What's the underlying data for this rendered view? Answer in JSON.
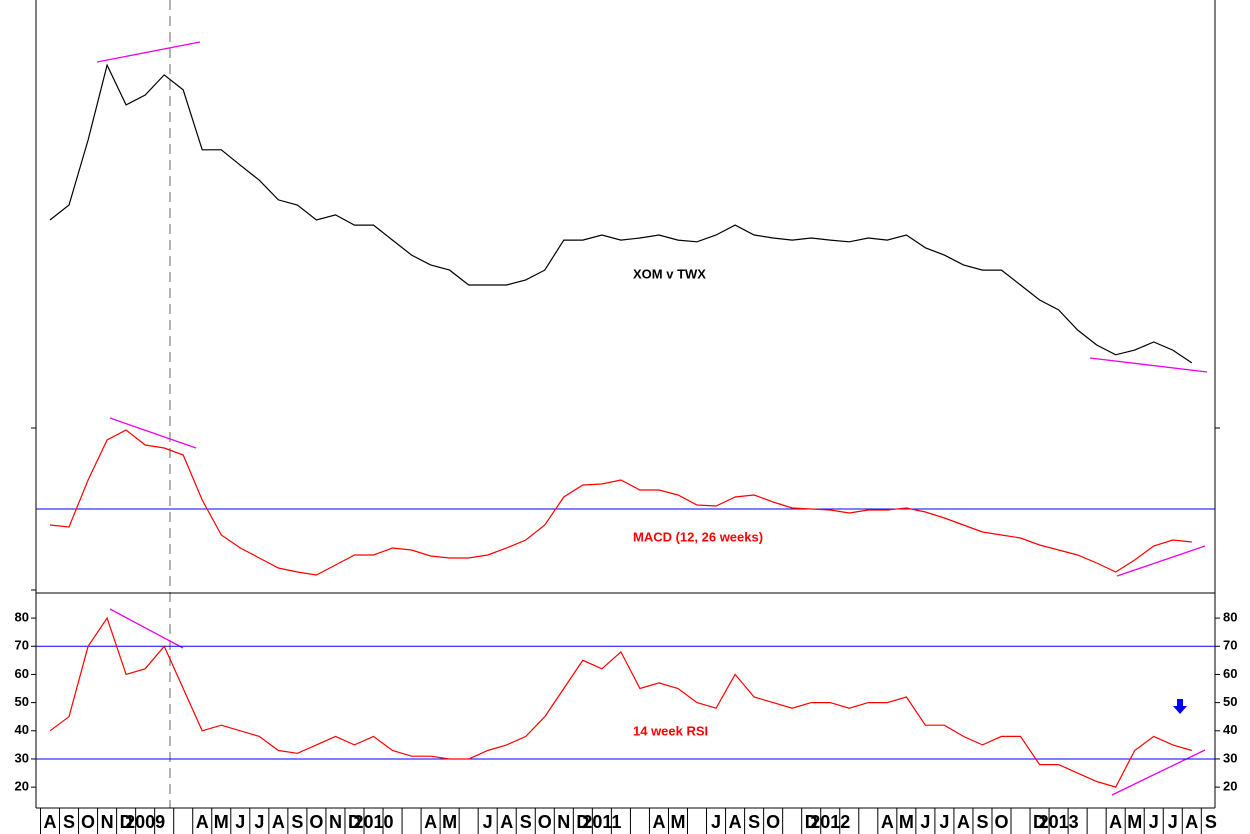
{
  "chart_data": {
    "type": "line",
    "categories": [
      "A",
      "S",
      "O",
      "N",
      "D",
      "2009",
      null,
      null,
      "A",
      "M",
      "J",
      "J",
      "A",
      "S",
      "O",
      "N",
      "D",
      "2010",
      null,
      null,
      "A",
      "M",
      null,
      "J",
      "A",
      "S",
      "O",
      "N",
      "D",
      "2011",
      null,
      null,
      "A",
      "M",
      null,
      "J",
      "A",
      "S",
      "O",
      null,
      "D",
      "2012",
      null,
      null,
      "A",
      "M",
      "J",
      "J",
      "A",
      "S",
      "O",
      null,
      "D",
      "2013",
      null,
      null,
      "A",
      "M",
      "J",
      "J",
      "A",
      "S"
    ],
    "panels": [
      {
        "title": "XOM v TWX",
        "color": "#000000",
        "title_color": "#000000",
        "ylim": [
          0,
          100
        ],
        "values": [
          48.6,
          52.1,
          67.3,
          84.8,
          75.5,
          77.8,
          82.5,
          79.0,
          65.0,
          65.0,
          61.4,
          57.9,
          53.3,
          52.1,
          48.6,
          49.8,
          47.4,
          47.4,
          43.9,
          40.4,
          38.1,
          36.9,
          33.4,
          33.4,
          33.4,
          34.6,
          36.9,
          43.9,
          43.9,
          45.1,
          43.9,
          44.4,
          45.1,
          43.9,
          43.5,
          45.1,
          47.4,
          45.1,
          44.4,
          43.9,
          44.4,
          43.9,
          43.5,
          44.4,
          43.9,
          45.1,
          42.1,
          40.4,
          38.1,
          36.9,
          36.9,
          33.4,
          29.9,
          27.6,
          22.9,
          19.4,
          17.1,
          18.2,
          20.1,
          18.2,
          15.2,
          null
        ]
      },
      {
        "title": "MACD (12, 26 weeks)",
        "color": "#ff0000",
        "title_color": "#ff0000",
        "ylim": [
          -0.84,
          0.81
        ],
        "hlines": [
          0
        ],
        "hline_color": "#0000ff",
        "values": [
          -0.16,
          -0.18,
          0.29,
          0.69,
          0.79,
          0.64,
          0.61,
          0.54,
          0.09,
          -0.26,
          -0.39,
          -0.49,
          -0.59,
          -0.63,
          -0.66,
          -0.56,
          -0.46,
          -0.46,
          -0.39,
          -0.41,
          -0.47,
          -0.49,
          -0.49,
          -0.46,
          -0.39,
          -0.31,
          -0.16,
          0.12,
          0.24,
          0.25,
          0.29,
          0.19,
          0.19,
          0.14,
          0.04,
          0.03,
          0.12,
          0.14,
          0.07,
          0.01,
          0,
          -0.01,
          -0.04,
          -0.01,
          -0.01,
          0.01,
          -0.03,
          -0.09,
          -0.16,
          -0.23,
          -0.26,
          -0.29,
          -0.36,
          -0.41,
          -0.46,
          -0.54,
          -0.63,
          -0.51,
          -0.37,
          -0.31,
          -0.33,
          null
        ]
      },
      {
        "title": "14 week RSI",
        "color": "#ff0000",
        "title_color": "#ff0000",
        "ylim": [
          12.6,
          88.9
        ],
        "yticks": [
          20,
          30,
          40,
          50,
          60,
          70,
          80
        ],
        "hlines": [
          70,
          30
        ],
        "hline_color": "#0000ff",
        "values": [
          40,
          45,
          70,
          80,
          60,
          62,
          70,
          55,
          40,
          42,
          40,
          38,
          33,
          32,
          35,
          38,
          35,
          38,
          33,
          31,
          31,
          30,
          30,
          33,
          35,
          38,
          45,
          55,
          65,
          62,
          68,
          55,
          57,
          55,
          50,
          48,
          60,
          52,
          50,
          48,
          50,
          50,
          48,
          50,
          50,
          52,
          42,
          42,
          38,
          35,
          38,
          38,
          28,
          28,
          25,
          22,
          20,
          33,
          38,
          35,
          33,
          null
        ]
      }
    ]
  }
}
